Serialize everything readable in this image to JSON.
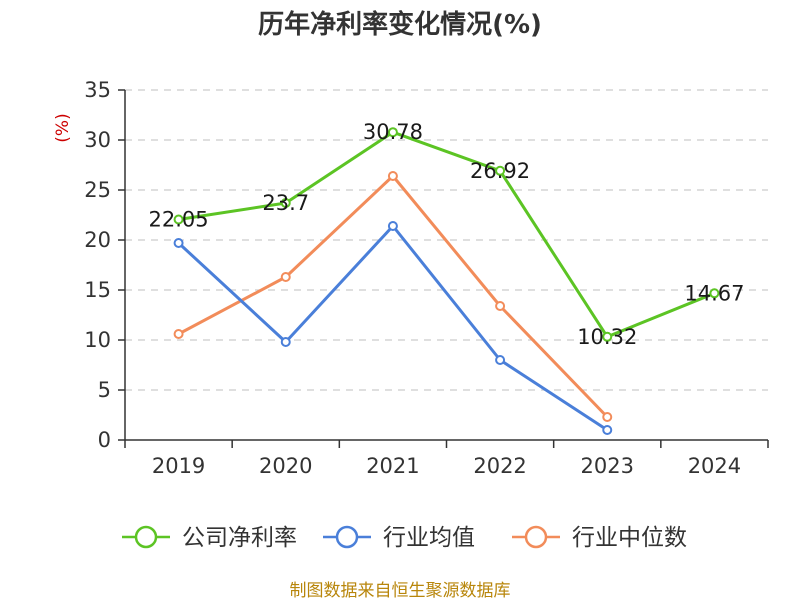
{
  "chart_data": {
    "type": "line",
    "title": "历年净利率变化情况(%)",
    "ylabel": "(%)",
    "xlabel": "",
    "categories": [
      "2019",
      "2020",
      "2021",
      "2022",
      "2023",
      "2024"
    ],
    "ylim": [
      0,
      35
    ],
    "yticks": [
      0,
      5,
      10,
      15,
      20,
      25,
      30,
      35
    ],
    "grid": true,
    "legend_position": "bottom",
    "series": [
      {
        "name": "公司净利率",
        "color": "#5cc424",
        "values": [
          22.05,
          23.7,
          30.78,
          26.92,
          10.32,
          14.67
        ],
        "labels": [
          "22.05",
          "23.7",
          "30.78",
          "26.92",
          "10.32",
          "14.67"
        ]
      },
      {
        "name": "行业均值",
        "color": "#4a7fd9",
        "values": [
          19.7,
          9.8,
          21.4,
          8.0,
          1.0,
          null
        ]
      },
      {
        "name": "行业中位数",
        "color": "#f28c5a",
        "values": [
          10.6,
          16.3,
          26.4,
          13.4,
          2.3,
          null
        ]
      }
    ]
  },
  "footer": {
    "source": "制图数据来自恒生聚源数据库"
  }
}
